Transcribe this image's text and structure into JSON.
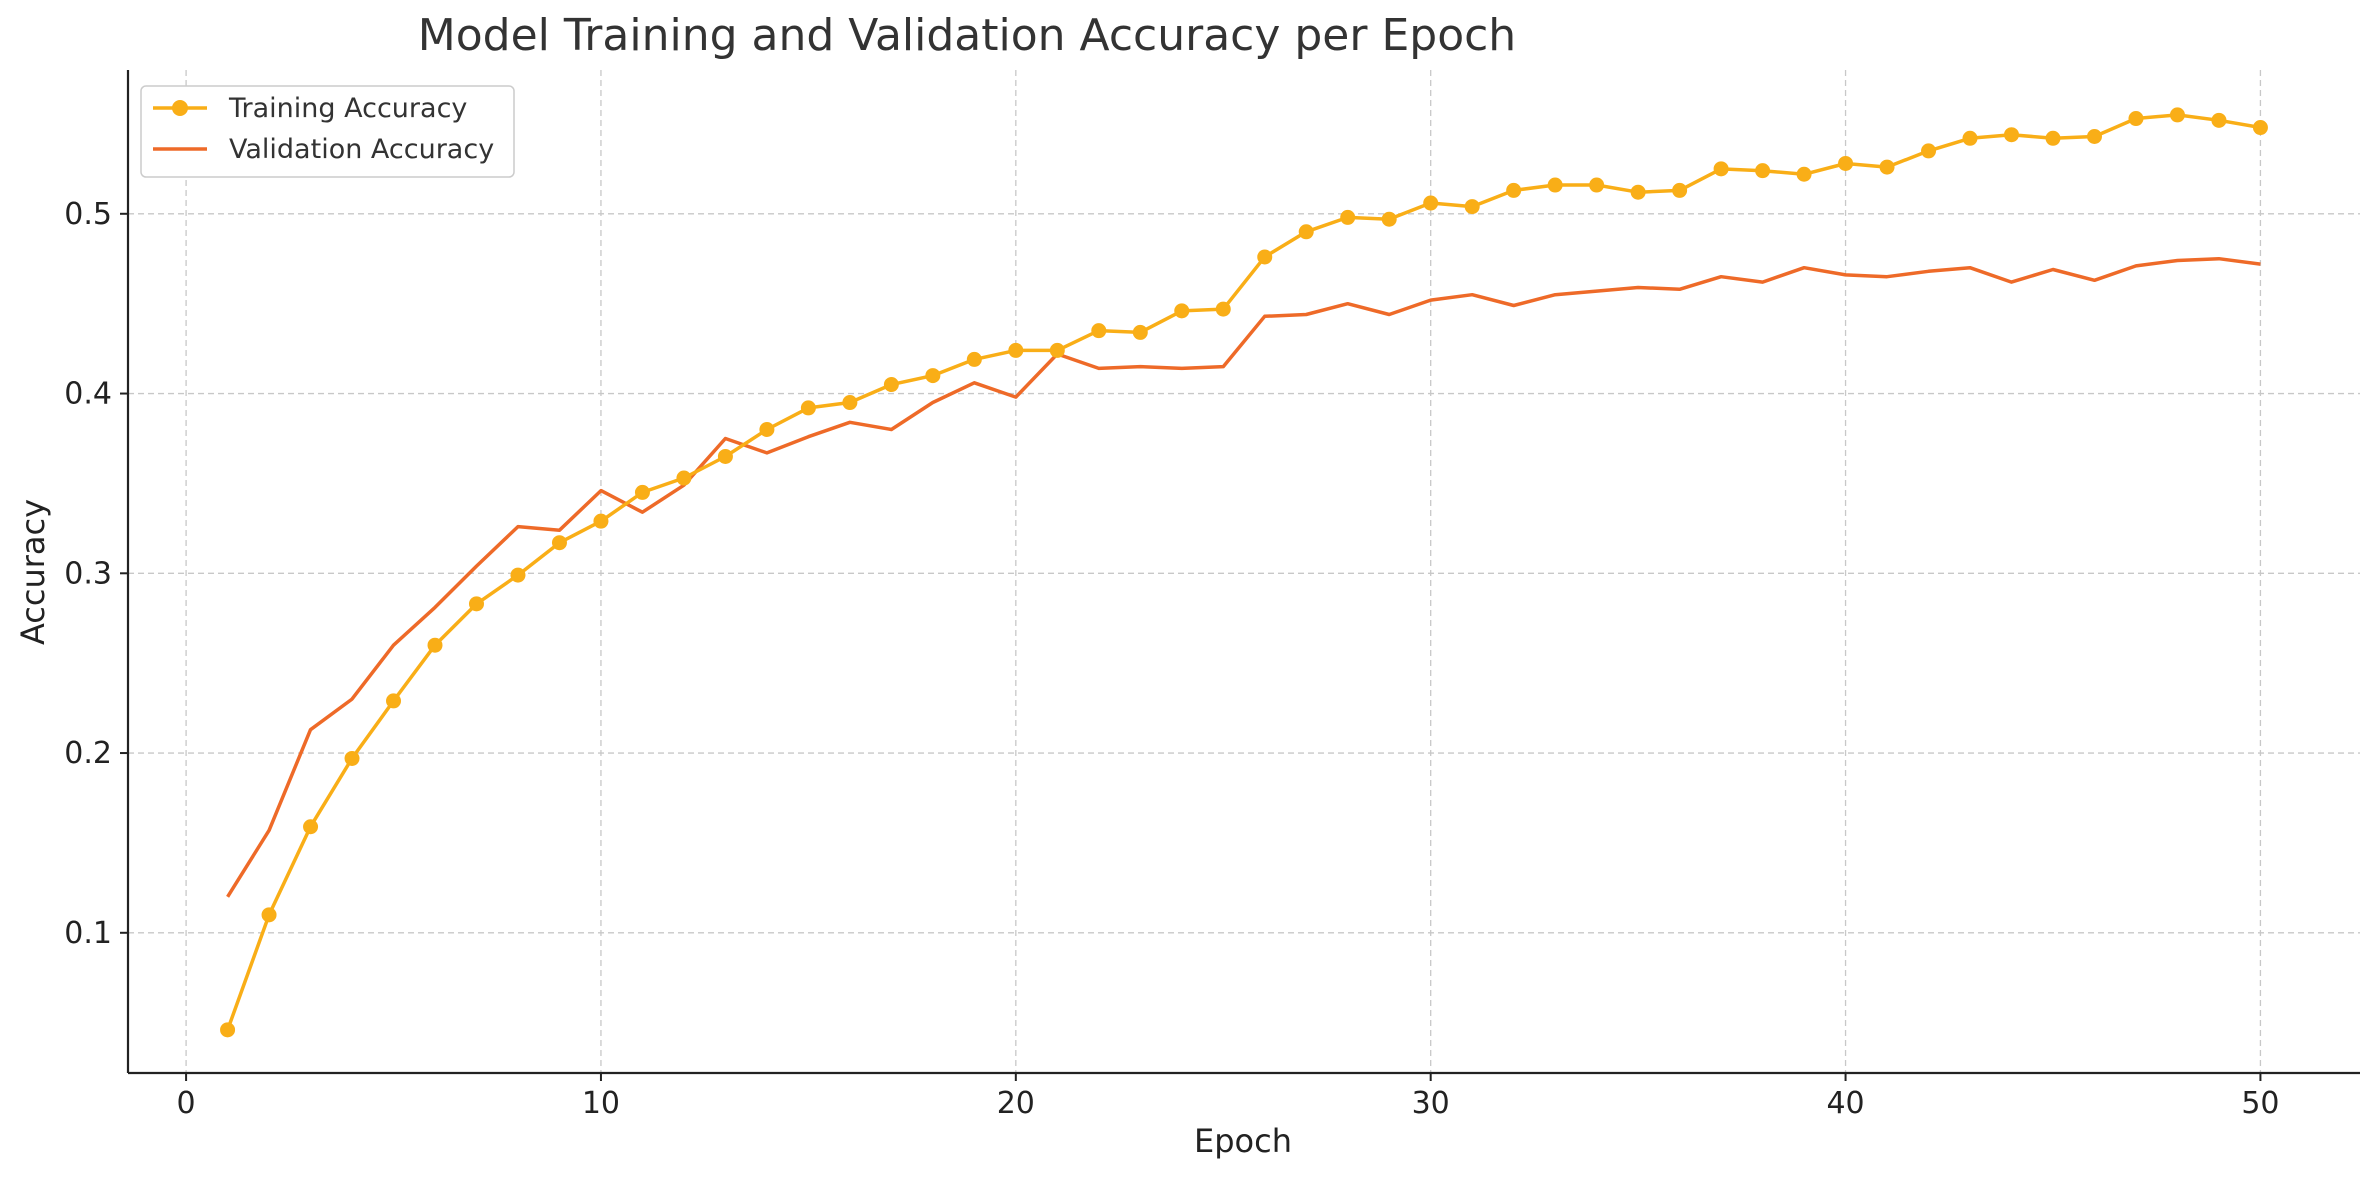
{
  "chart_data": {
    "type": "line",
    "title": "Model Training and Validation Accuracy per Epoch",
    "xlabel": "Epoch",
    "ylabel": "Accuracy",
    "xlim": [
      -1.4,
      52.4
    ],
    "ylim": [
      0.022,
      0.58
    ],
    "xticks": [
      0,
      10,
      20,
      30,
      40,
      50
    ],
    "yticks": [
      0.1,
      0.2,
      0.3,
      0.4,
      0.5
    ],
    "grid": true,
    "legend_position": "top-left",
    "x": [
      1,
      2,
      3,
      4,
      5,
      6,
      7,
      8,
      9,
      10,
      11,
      12,
      13,
      14,
      15,
      16,
      17,
      18,
      19,
      20,
      21,
      22,
      23,
      24,
      25,
      26,
      27,
      28,
      29,
      30,
      31,
      32,
      33,
      34,
      35,
      36,
      37,
      38,
      39,
      40,
      41,
      42,
      43,
      44,
      45,
      46,
      47,
      48,
      49,
      50
    ],
    "series": [
      {
        "name": "Training Accuracy",
        "color": "#F9AE17",
        "marker": "circle",
        "values": [
          0.046,
          0.11,
          0.159,
          0.197,
          0.229,
          0.26,
          0.283,
          0.299,
          0.317,
          0.329,
          0.345,
          0.353,
          0.365,
          0.38,
          0.392,
          0.395,
          0.405,
          0.41,
          0.419,
          0.424,
          0.424,
          0.435,
          0.434,
          0.446,
          0.447,
          0.476,
          0.49,
          0.498,
          0.497,
          0.506,
          0.504,
          0.513,
          0.516,
          0.516,
          0.512,
          0.513,
          0.525,
          0.524,
          0.522,
          0.528,
          0.526,
          0.535,
          0.542,
          0.544,
          0.542,
          0.543,
          0.553,
          0.555,
          0.552,
          0.548
        ]
      },
      {
        "name": "Validation Accuracy",
        "color": "#EE6A28",
        "marker": "none",
        "values": [
          0.12,
          0.157,
          0.213,
          0.23,
          0.26,
          0.281,
          0.304,
          0.326,
          0.324,
          0.346,
          0.334,
          0.349,
          0.375,
          0.367,
          0.376,
          0.384,
          0.38,
          0.395,
          0.406,
          0.398,
          0.422,
          0.414,
          0.415,
          0.414,
          0.415,
          0.443,
          0.444,
          0.45,
          0.444,
          0.452,
          0.455,
          0.449,
          0.455,
          0.457,
          0.459,
          0.458,
          0.465,
          0.462,
          0.47,
          0.466,
          0.465,
          0.468,
          0.47,
          0.462,
          0.469,
          0.463,
          0.471,
          0.474,
          0.475,
          0.472
        ]
      }
    ]
  }
}
